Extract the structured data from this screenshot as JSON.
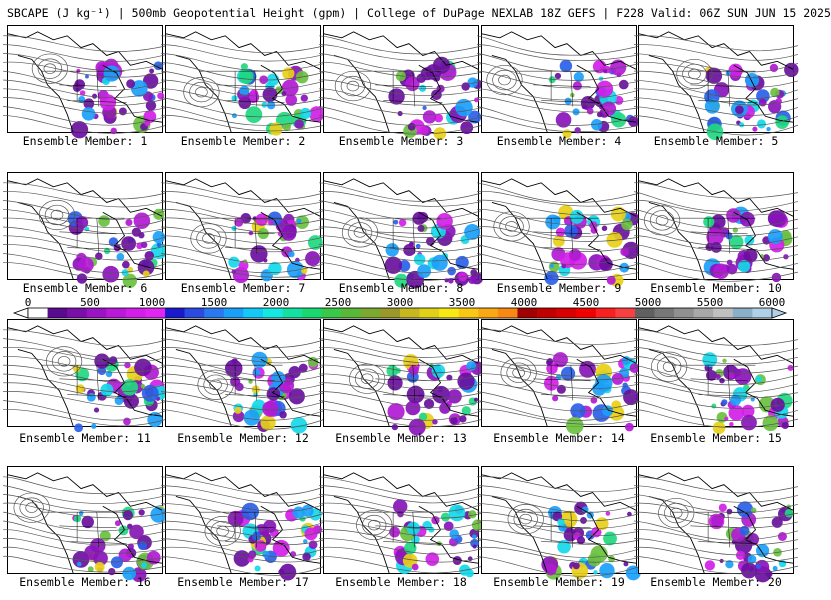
{
  "title": "SBCAPE (J kg⁻¹) | 500mb Geopotential Height (gpm) | College of DuPage NEXLAB 18Z GEFS | F228 Valid: 06Z SUN JUN 15 2025",
  "caption_prefix": "Ensemble Member: ",
  "members": [
    {
      "label": "Ensemble Member: 1"
    },
    {
      "label": "Ensemble Member: 2"
    },
    {
      "label": "Ensemble Member: 3"
    },
    {
      "label": "Ensemble Member: 4"
    },
    {
      "label": "Ensemble Member: 5"
    },
    {
      "label": "Ensemble Member: 6"
    },
    {
      "label": "Ensemble Member: 7"
    },
    {
      "label": "Ensemble Member: 8"
    },
    {
      "label": "Ensemble Member: 9"
    },
    {
      "label": "Ensemble Member: 10"
    },
    {
      "label": "Ensemble Member: 11"
    },
    {
      "label": "Ensemble Member: 12"
    },
    {
      "label": "Ensemble Member: 13"
    },
    {
      "label": "Ensemble Member: 14"
    },
    {
      "label": "Ensemble Member: 15"
    },
    {
      "label": "Ensemble Member: 16"
    },
    {
      "label": "Ensemble Member: 17"
    },
    {
      "label": "Ensemble Member: 18"
    },
    {
      "label": "Ensemble Member: 19"
    },
    {
      "label": "Ensemble Member: 20"
    }
  ],
  "colorbar": {
    "tick_labels": [
      "0",
      "500",
      "1000",
      "1500",
      "2000",
      "2500",
      "3000",
      "3500",
      "4000",
      "4500",
      "5000",
      "5500",
      "6000"
    ],
    "min": 0,
    "max": 6000,
    "colors": [
      "#ffffff",
      "#5a0a8c",
      "#7a0fa8",
      "#9a14c4",
      "#b81ad8",
      "#d21ee8",
      "#e026f0",
      "#1a1acc",
      "#2a4ae0",
      "#2a78f0",
      "#1aa0f8",
      "#14c8f8",
      "#14e8e0",
      "#14e0a0",
      "#1ad870",
      "#3ac848",
      "#5ab838",
      "#7aa830",
      "#9a9828",
      "#c8b820",
      "#e0d018",
      "#f8e814",
      "#f8c814",
      "#f8a814",
      "#f88814",
      "#a00000",
      "#c00000",
      "#d80000",
      "#f00000",
      "#f82020",
      "#f84040",
      "#606060",
      "#787878",
      "#909090",
      "#a8a8a8",
      "#c0c0c0",
      "#8ab0c8",
      "#b0d0e8"
    ]
  }
}
